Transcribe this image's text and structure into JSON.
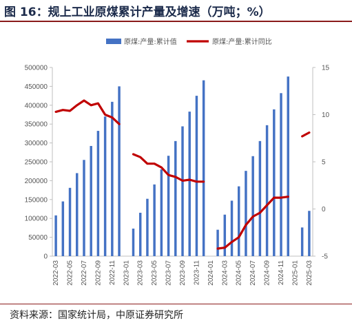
{
  "title": "图 16：规上工业原煤累计产量及增速（万吨；%）",
  "source": "资料来源：国家统计局，中原证券研究所",
  "colors": {
    "bar": "#4472C4",
    "line": "#C00000",
    "rule": "#8a1a1a"
  },
  "chart_data": {
    "type": "bar",
    "categories": [
      "2022-03",
      "2022-04",
      "2022-05",
      "2022-06",
      "2022-07",
      "2022-08",
      "2022-09",
      "2022-10",
      "2022-11",
      "2022-12",
      "2023-01",
      "2023-02",
      "2023-03",
      "2023-04",
      "2023-05",
      "2023-06",
      "2023-07",
      "2023-08",
      "2023-09",
      "2023-10",
      "2023-11",
      "2023-12",
      "2024-01",
      "2024-02",
      "2024-03",
      "2024-04",
      "2024-05",
      "2024-06",
      "2024-07",
      "2024-08",
      "2024-09",
      "2024-10",
      "2024-11",
      "2024-12",
      "2025-01",
      "2025-02",
      "2025-03"
    ],
    "x_tick_labels": [
      "2022-03",
      "2022-05",
      "2022-07",
      "2022-09",
      "2022-11",
      "2023-01",
      "2023-03",
      "2023-05",
      "2023-07",
      "2023-09",
      "2023-11",
      "2024-01",
      "2024-03",
      "2024-05",
      "2024-07",
      "2024-09",
      "2024-11",
      "2025-01",
      "2025-03"
    ],
    "series": [
      {
        "name": "原煤:产量:累计值",
        "axis": "left",
        "type": "bar",
        "values": [
          108000,
          145000,
          181000,
          220000,
          255000,
          292000,
          332000,
          370000,
          409000,
          450000,
          null,
          73000,
          115000,
          152000,
          190000,
          230000,
          266000,
          305000,
          344000,
          383000,
          425000,
          466000,
          null,
          70000,
          110000,
          147000,
          185000,
          226000,
          265000,
          305000,
          347000,
          389000,
          432000,
          476000,
          null,
          76000,
          120000
        ]
      },
      {
        "name": "原煤:产量:累计同比",
        "axis": "right",
        "type": "line",
        "values": [
          10.3,
          10.5,
          10.4,
          11.0,
          11.5,
          11.0,
          11.2,
          10.0,
          9.7,
          9.0,
          null,
          5.8,
          5.5,
          4.8,
          4.8,
          4.4,
          3.6,
          3.4,
          3.0,
          3.1,
          2.9,
          2.9,
          null,
          -4.2,
          -4.1,
          -3.5,
          -3.0,
          -1.7,
          -0.8,
          -0.4,
          0.4,
          1.2,
          1.2,
          1.3,
          null,
          7.7,
          8.1
        ]
      }
    ],
    "y_left": {
      "range": [
        0,
        500000
      ],
      "ticks": [
        "0",
        "50000",
        "100000",
        "150000",
        "200000",
        "250000",
        "300000",
        "350000",
        "400000",
        "450000",
        "500000"
      ]
    },
    "y_right": {
      "range": [
        -5,
        15
      ],
      "ticks": [
        "-5",
        "0",
        "5",
        "10",
        "15"
      ]
    },
    "legend": {
      "placement": "top",
      "entries": [
        "原煤:产量:累计值",
        "原煤:产量:累计同比"
      ]
    },
    "grid": false
  }
}
